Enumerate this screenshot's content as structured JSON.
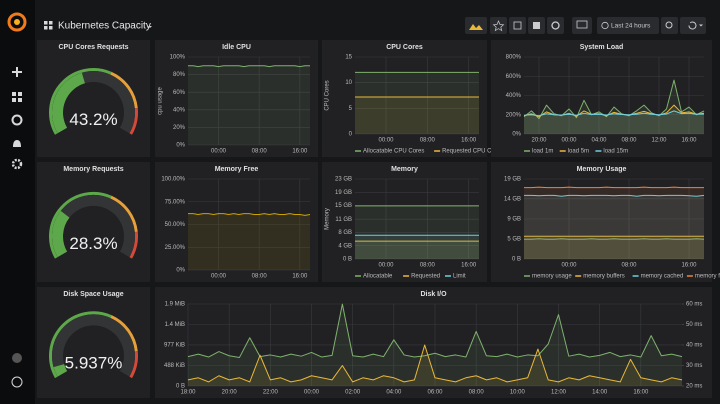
{
  "header": {
    "title": "Kubernetes Capacity",
    "time_range": "Last 24 hours"
  },
  "gauges": [
    {
      "title": "CPU Cores Requests",
      "value": 43.2,
      "value_label": "43.2%"
    },
    {
      "title": "Memory Requests",
      "value": 28.3,
      "value_label": "28.3%"
    },
    {
      "title": "Disk Space Usage",
      "value": 5.937,
      "value_label": "5.937%"
    }
  ],
  "panels": [
    {
      "type": "line",
      "title": "Idle CPU",
      "ylabel": "cpu usage",
      "grid": true,
      "legend": false,
      "ylim": [
        0,
        100
      ],
      "yticks": [
        {
          "value": 0,
          "label": "0%"
        },
        {
          "value": 20,
          "label": "20%"
        },
        {
          "value": 40,
          "label": "40%"
        },
        {
          "value": 60,
          "label": "60%"
        },
        {
          "value": 80,
          "label": "80%"
        },
        {
          "value": 100,
          "label": "100%"
        }
      ],
      "categories": [
        null,
        null,
        null,
        null,
        null,
        null,
        "00:00",
        null,
        null,
        null,
        null,
        null,
        null,
        null,
        "08:00",
        null,
        null,
        null,
        null,
        null,
        null,
        null,
        "16:00",
        null,
        null
      ],
      "series": [
        {
          "color": "#7eb26d",
          "values": [
            90,
            90,
            89,
            90,
            90,
            90,
            89,
            90,
            90,
            90,
            90,
            89,
            90,
            90,
            90,
            90,
            89,
            90,
            90,
            90,
            90,
            90,
            89,
            90,
            90
          ]
        }
      ]
    },
    {
      "type": "line",
      "title": "CPU Cores",
      "ylabel": "CPU Cores",
      "grid": true,
      "legend": true,
      "ylim": [
        0,
        15
      ],
      "yticks": [
        0,
        5,
        10,
        15
      ],
      "categories": [
        null,
        null,
        null,
        null,
        null,
        null,
        "00:00",
        null,
        null,
        null,
        null,
        null,
        null,
        null,
        "08:00",
        null,
        null,
        null,
        null,
        null,
        null,
        null,
        "16:00",
        null,
        null
      ],
      "series": [
        {
          "name": "Allocatable CPU Cores",
          "color": "#7eb26d",
          "values": [
            12,
            12,
            12,
            12,
            12,
            12,
            12,
            12,
            12,
            12,
            12,
            12,
            12,
            12,
            12,
            12,
            12,
            12,
            12,
            12,
            12,
            12,
            12,
            12,
            12
          ]
        },
        {
          "name": "Requested CPU Cores",
          "color": "#eab839",
          "values": [
            7.2,
            7.2,
            7.2,
            7.2,
            7.2,
            7.2,
            7.2,
            7.2,
            7.2,
            7.2,
            7.2,
            7.2,
            7.2,
            7.2,
            7.2,
            7.2,
            7.2,
            7.2,
            7.2,
            7.2,
            7.2,
            7.2,
            7.2,
            7.2,
            7.2
          ]
        }
      ]
    },
    {
      "type": "line",
      "title": "System Load",
      "grid": true,
      "legend": true,
      "ylim": [
        0,
        800
      ],
      "yticks": [
        {
          "value": 0,
          "label": "0%"
        },
        {
          "value": 200,
          "label": "200%"
        },
        {
          "value": 400,
          "label": "400%"
        },
        {
          "value": 600,
          "label": "600%"
        },
        {
          "value": 800,
          "label": "800%"
        }
      ],
      "categories": [
        null,
        null,
        "20:00",
        null,
        null,
        null,
        "00:00",
        null,
        null,
        null,
        "04:00",
        null,
        null,
        null,
        "08:00",
        null,
        null,
        null,
        "12:00",
        null,
        null,
        null,
        "16:00",
        null,
        null
      ],
      "series": [
        {
          "name": "load 1m",
          "color": "#7eb26d",
          "values": [
            180,
            240,
            160,
            300,
            210,
            190,
            260,
            170,
            350,
            200,
            230,
            180,
            280,
            210,
            190,
            240,
            300,
            220,
            190,
            260,
            560,
            230,
            280,
            200,
            240
          ]
        },
        {
          "name": "load 5m",
          "color": "#eab839",
          "values": [
            190,
            210,
            180,
            230,
            200,
            195,
            215,
            185,
            240,
            205,
            210,
            190,
            225,
            205,
            195,
            215,
            235,
            210,
            195,
            220,
            300,
            220,
            230,
            205,
            215
          ]
        },
        {
          "name": "load 15m",
          "color": "#6ed0e0",
          "values": [
            195,
            200,
            190,
            210,
            200,
            198,
            205,
            195,
            215,
            202,
            205,
            198,
            210,
            203,
            200,
            205,
            215,
            205,
            200,
            208,
            240,
            212,
            215,
            205,
            208
          ]
        }
      ]
    },
    {
      "type": "line",
      "title": "Memory Free",
      "grid": true,
      "legend": false,
      "ylim": [
        0,
        100
      ],
      "yticks": [
        {
          "value": 0,
          "label": "0%"
        },
        {
          "value": 25,
          "label": "25.00%"
        },
        {
          "value": 50,
          "label": "50.00%"
        },
        {
          "value": 75,
          "label": "75.00%"
        },
        {
          "value": 100,
          "label": "100.00%"
        }
      ],
      "categories": [
        null,
        null,
        null,
        null,
        null,
        null,
        "00:00",
        null,
        null,
        null,
        null,
        null,
        null,
        null,
        "08:00",
        null,
        null,
        null,
        null,
        null,
        null,
        null,
        "16:00",
        null,
        null
      ],
      "series": [
        {
          "color": "#cca300",
          "values": [
            62,
            62,
            61,
            62,
            62,
            61,
            62,
            62,
            61,
            62,
            61,
            62,
            62,
            61,
            61,
            62,
            61,
            62,
            61,
            61,
            62,
            61,
            61,
            60,
            61
          ]
        }
      ]
    },
    {
      "type": "line",
      "title": "Memory",
      "ylabel": "Memory",
      "grid": true,
      "legend": true,
      "ylim": [
        0,
        22.9
      ],
      "yticks": [
        {
          "value": 0,
          "label": "0 B"
        },
        {
          "value": 3.8,
          "label": "4 GB"
        },
        {
          "value": 7.6,
          "label": "8 GB"
        },
        {
          "value": 11.4,
          "label": "11 GB"
        },
        {
          "value": 15.3,
          "label": "15 GB"
        },
        {
          "value": 19.1,
          "label": "19 GB"
        },
        {
          "value": 22.9,
          "label": "23 GB"
        }
      ],
      "categories": [
        null,
        null,
        null,
        null,
        null,
        null,
        "00:00",
        null,
        null,
        null,
        null,
        null,
        null,
        null,
        "08:00",
        null,
        null,
        null,
        null,
        null,
        null,
        null,
        "16:00",
        null,
        null
      ],
      "series": [
        {
          "name": "Allocatable",
          "color": "#7eb26d",
          "values": [
            15.2,
            15.2,
            15.2,
            15.2,
            15.2,
            15.2,
            15.2,
            15.2,
            15.2,
            15.2,
            15.2,
            15.2,
            15.2,
            15.2,
            15.2,
            15.2,
            15.2,
            15.2,
            15.2,
            15.2,
            15.2,
            15.2,
            15.2,
            15.2,
            15.2
          ]
        },
        {
          "name": "Requested",
          "color": "#eab839",
          "values": [
            5.1,
            5.1,
            5.1,
            5.1,
            5.1,
            5.1,
            5.1,
            5.1,
            5.1,
            5.1,
            5.1,
            5.1,
            5.1,
            5.1,
            5.1,
            5.1,
            5.1,
            5.1,
            5.1,
            5.1,
            5.1,
            5.1,
            5.1,
            5.1,
            5.1
          ]
        },
        {
          "name": "Limit",
          "color": "#6ed0e0",
          "values": [
            6.8,
            6.8,
            6.8,
            6.8,
            6.8,
            6.8,
            6.8,
            6.8,
            6.8,
            6.8,
            6.8,
            6.8,
            6.8,
            6.8,
            6.8,
            6.8,
            6.8,
            6.8,
            6.8,
            6.8,
            6.8,
            6.8,
            6.8,
            6.8,
            6.8
          ]
        }
      ]
    },
    {
      "type": "line",
      "title": "Memory Usage",
      "grid": true,
      "legend": true,
      "ylim": [
        0,
        18.6
      ],
      "yticks": [
        {
          "value": 0,
          "label": "0 B"
        },
        {
          "value": 4.7,
          "label": "5 GB"
        },
        {
          "value": 9.3,
          "label": "9 GB"
        },
        {
          "value": 14,
          "label": "14 GB"
        },
        {
          "value": 18.6,
          "label": "19 GB"
        }
      ],
      "categories": [
        null,
        null,
        null,
        null,
        null,
        null,
        "00:00",
        null,
        null,
        null,
        null,
        null,
        null,
        null,
        "08:00",
        null,
        null,
        null,
        null,
        null,
        null,
        null,
        "16:00",
        null,
        null
      ],
      "series": [
        {
          "name": "memory usage",
          "color": "#7eb26d",
          "values": [
            4.6,
            4.6,
            4.7,
            4.6,
            4.6,
            4.7,
            4.6,
            4.6,
            4.6,
            4.7,
            4.6,
            4.6,
            4.7,
            4.6,
            4.6,
            4.6,
            4.7,
            4.6,
            4.6,
            4.7,
            4.6,
            4.6,
            4.6,
            4.7,
            4.6
          ]
        },
        {
          "name": "memory buffers",
          "color": "#eab839",
          "values": [
            5.3,
            5.3,
            5.3,
            5.3,
            5.3,
            5.3,
            5.3,
            5.3,
            5.3,
            5.3,
            5.3,
            5.3,
            5.3,
            5.3,
            5.3,
            5.3,
            5.3,
            5.3,
            5.3,
            5.3,
            5.3,
            5.3,
            5.3,
            5.3,
            5.3
          ]
        },
        {
          "name": "memory cached",
          "color": "#6ed0e0",
          "values": [
            14.8,
            14.8,
            14.7,
            14.8,
            14.8,
            14.6,
            14.8,
            14.8,
            14.7,
            14.8,
            14.8,
            14.8,
            14.7,
            14.8,
            14.8,
            14.6,
            14.8,
            14.8,
            14.7,
            14.8,
            14.8,
            14.8,
            14.7,
            14.6,
            14.8
          ]
        },
        {
          "name": "memory free",
          "color": "#ef843c",
          "values": [
            16.6,
            16.6,
            16.7,
            16.6,
            16.6,
            16.6,
            16.7,
            16.6,
            16.6,
            16.6,
            16.6,
            16.7,
            16.6,
            16.6,
            16.6,
            16.6,
            16.7,
            16.6,
            16.6,
            16.6,
            16.7,
            16.6,
            16.6,
            16.6,
            16.6
          ]
        }
      ]
    },
    {
      "type": "line",
      "title": "Disk I/O",
      "grid": true,
      "legend": false,
      "ylim": [
        0,
        1953
      ],
      "yticks": [
        {
          "value": 0,
          "label": "0 B"
        },
        {
          "value": 488,
          "label": "488 KiB"
        },
        {
          "value": 977,
          "label": "977 KiB"
        },
        {
          "value": 1465,
          "label": "1.4 MiB"
        },
        {
          "value": 1953,
          "label": "1.9 MiB"
        }
      ],
      "y2lim": [
        20,
        60
      ],
      "y2ticks": [
        {
          "value": 20,
          "label": "20 ms"
        },
        {
          "value": 30,
          "label": "30 ms"
        },
        {
          "value": 40,
          "label": "40 ms"
        },
        {
          "value": 50,
          "label": "50 ms"
        },
        {
          "value": 60,
          "label": "60 ms"
        }
      ],
      "categories": [
        "18:00",
        null,
        null,
        null,
        "20:00",
        null,
        null,
        null,
        "22:00",
        null,
        null,
        null,
        "00:00",
        null,
        null,
        null,
        "02:00",
        null,
        null,
        null,
        "04:00",
        null,
        null,
        null,
        "06:00",
        null,
        null,
        null,
        "08:00",
        null,
        null,
        null,
        "10:00",
        null,
        null,
        null,
        "12:00",
        null,
        null,
        null,
        "14:00",
        null,
        null,
        null,
        "16:00",
        null,
        null,
        null,
        null
      ],
      "series": [
        {
          "color": "#7eb26d",
          "values": [
            700,
            760,
            690,
            820,
            720,
            680,
            1150,
            700,
            740,
            690,
            760,
            710,
            800,
            690,
            730,
            1950,
            720,
            690,
            760,
            700,
            1100,
            740,
            690,
            720,
            780,
            700,
            740,
            690,
            1300,
            720,
            700,
            760,
            690,
            740,
            720,
            1000,
            1700,
            710,
            760,
            690,
            730,
            800,
            700,
            740,
            690,
            1200,
            720,
            760,
            700
          ]
        },
        {
          "color": "#eab839",
          "axis": "y2",
          "values": [
            23,
            24,
            22,
            25,
            23,
            24,
            22,
            35,
            23,
            24,
            22,
            23,
            25,
            24,
            23,
            30,
            22,
            24,
            23,
            25,
            24,
            22,
            23,
            40,
            24,
            23,
            22,
            24,
            25,
            23,
            24,
            22,
            23,
            24,
            38,
            23,
            22,
            24,
            23,
            25,
            24,
            23,
            22,
            33,
            24,
            23,
            22,
            24,
            23
          ]
        }
      ]
    }
  ]
}
